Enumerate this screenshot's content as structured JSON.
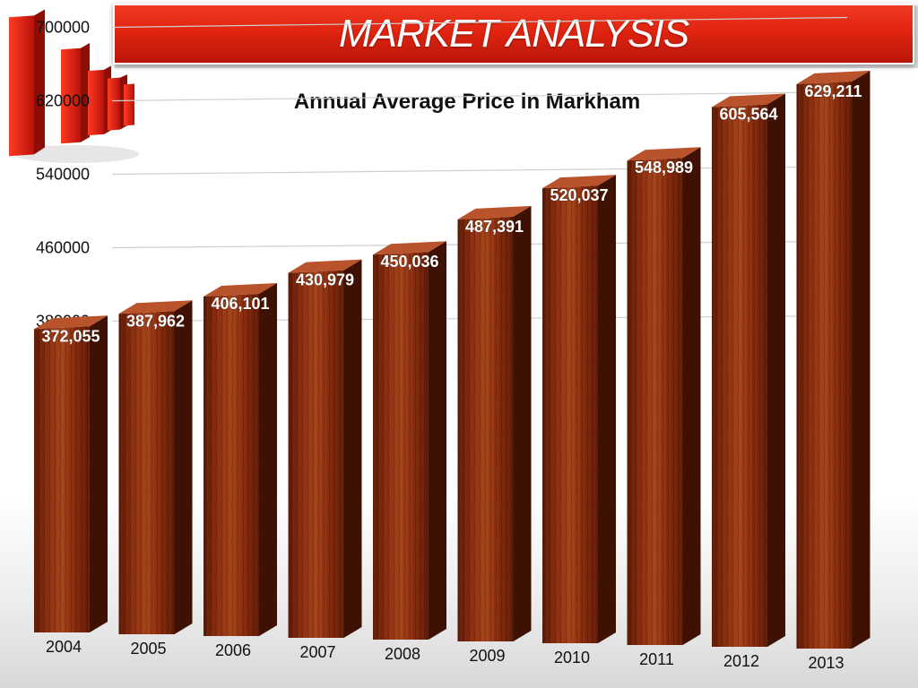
{
  "header": {
    "title": "MARKET ANALYSIS"
  },
  "icons": {
    "logo": "red-bar-chart-icon"
  },
  "colors": {
    "banner": "#e0240f",
    "bar_front": "#8a2e10",
    "bar_dark": "#4a1405",
    "bar_top": "#c0502a"
  },
  "chart_data": {
    "type": "bar",
    "title": "Annual Average Price in Markham",
    "xlabel": "",
    "ylabel": "",
    "categories": [
      "2004",
      "2005",
      "2006",
      "2007",
      "2008",
      "2009",
      "2010",
      "2011",
      "2012",
      "2013"
    ],
    "values": [
      372055,
      387962,
      406101,
      430979,
      450036,
      487391,
      520037,
      548989,
      605564,
      629211
    ],
    "data_labels": [
      "372,055",
      "387,962",
      "406,101",
      "430,979",
      "450,036",
      "487,391",
      "520,037",
      "548,989",
      "605,564",
      "629,211"
    ],
    "yticks": [
      "380000",
      "460000",
      "540000",
      "620000",
      "700000"
    ],
    "ylim": [
      300000,
      700000
    ],
    "grid": true,
    "legend": "none"
  }
}
